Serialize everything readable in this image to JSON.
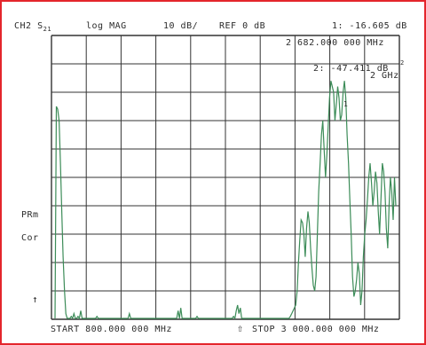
{
  "header": {
    "channel": "CH2",
    "param_main": "S",
    "param_sub": "21",
    "format": "log MAG",
    "scale": "10 dB/",
    "ref": "REF 0 dB"
  },
  "marker1": {
    "readout": "1: -16.605 dB",
    "frequency": "2 682.000 000 MHz"
  },
  "marker2": {
    "readout": "2: -47.411 dB",
    "readout_line2": "2 GHz",
    "sup": "2"
  },
  "sidebar": {
    "prm": "PRm",
    "cor": "Cor",
    "arrow": "↑"
  },
  "footer": {
    "start": "START  800.000 000 MHz",
    "stop_marker": "⇧",
    "stop": "STOP 3 000.000 000 MHz"
  },
  "marker_tag": "1",
  "colors": {
    "trace": "#3c8c58",
    "grid": "#333333",
    "text": "#2b2b2b",
    "border": "#e4262c"
  },
  "chart_data": {
    "type": "line",
    "x_start_mhz": 800,
    "x_stop_mhz": 3000,
    "ref_db": 0,
    "scale_db_per_div": 10,
    "series": [
      {
        "values_db": [
          -100,
          -25,
          -26,
          -30,
          -45,
          -62,
          -78,
          -90,
          -98,
          -100,
          -100,
          -100,
          -99,
          -100,
          -98,
          -100,
          -100,
          -99,
          -100,
          -97,
          -100,
          -100,
          -100,
          -100,
          -100,
          -100,
          -100,
          -100,
          -100,
          -100,
          -100,
          -99,
          -100,
          -100,
          -100,
          -100,
          -100,
          -100,
          -100,
          -100,
          -100,
          -100,
          -100,
          -100,
          -100,
          -100,
          -100,
          -100,
          -100,
          -100,
          -100,
          -100,
          -100,
          -100,
          -100,
          -98,
          -100,
          -100,
          -100,
          -100,
          -100,
          -100,
          -100,
          -100,
          -100,
          -100,
          -100,
          -100,
          -100,
          -100,
          -100,
          -100,
          -100,
          -100,
          -100,
          -100,
          -100,
          -100,
          -100,
          -100,
          -100,
          -100,
          -100,
          -100,
          -100,
          -100,
          -100,
          -100,
          -100,
          -100,
          -100,
          -97,
          -100,
          -96,
          -100,
          -100,
          -100,
          -100,
          -100,
          -100,
          -100,
          -100,
          -100,
          -100,
          -100,
          -99,
          -100,
          -100,
          -100,
          -100,
          -100,
          -100,
          -100,
          -100,
          -100,
          -100,
          -100,
          -100,
          -100,
          -100,
          -100,
          -100,
          -100,
          -100,
          -100,
          -100,
          -100,
          -100,
          -100,
          -100,
          -100,
          -100,
          -99,
          -100,
          -97,
          -95,
          -98,
          -96,
          -100,
          -100,
          -100,
          -100,
          -100,
          -100,
          -100,
          -100,
          -100,
          -100,
          -100,
          -100,
          -100,
          -100,
          -100,
          -100,
          -100,
          -100,
          -100,
          -100,
          -100,
          -100,
          -100,
          -100,
          -100,
          -100,
          -100,
          -100,
          -100,
          -100,
          -100,
          -100,
          -100,
          -100,
          -100,
          -100,
          -99,
          -98,
          -97,
          -96,
          -95,
          -90,
          -80,
          -72,
          -65,
          -66,
          -70,
          -78,
          -68,
          -62,
          -66,
          -75,
          -82,
          -88,
          -90,
          -85,
          -70,
          -55,
          -45,
          -35,
          -30,
          -40,
          -50,
          -42,
          -32,
          -22,
          -16,
          -18,
          -20,
          -30,
          -24,
          -18,
          -22,
          -30,
          -28,
          -20,
          -16,
          -22,
          -35,
          -45,
          -58,
          -70,
          -85,
          -92,
          -90,
          -86,
          -80,
          -84,
          -95,
          -90,
          -78,
          -70,
          -65,
          -58,
          -50,
          -45,
          -52,
          -60,
          -55,
          -48,
          -52,
          -62,
          -70,
          -58,
          -45,
          -48,
          -55,
          -68,
          -75,
          -60,
          -50,
          -55,
          -65,
          -50,
          -60
        ]
      }
    ]
  }
}
